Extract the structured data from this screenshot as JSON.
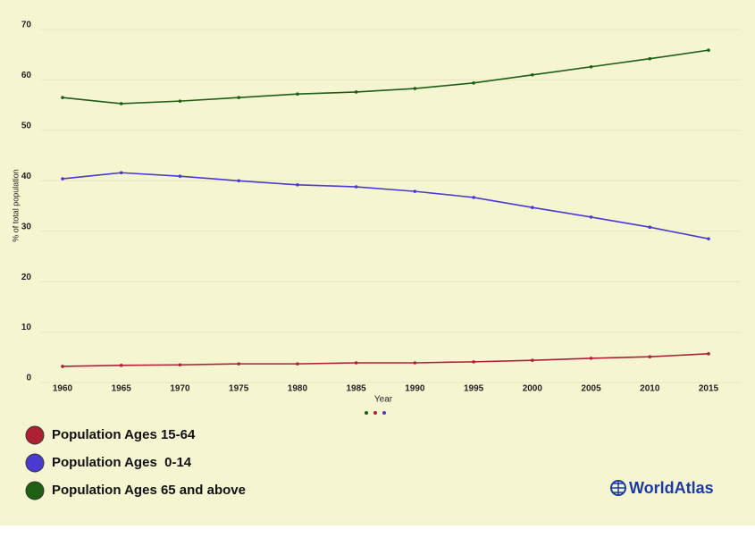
{
  "chart_data": {
    "type": "line",
    "x_label": "Year",
    "y_label": "% of total population",
    "categories": [
      "1960",
      "1965",
      "1970",
      "1975",
      "1980",
      "1985",
      "1990",
      "1995",
      "2000",
      "2005",
      "2010",
      "2015"
    ],
    "series": [
      {
        "name": "Population Ages 15-64",
        "color": "#b02035",
        "values": [
          3.2,
          3.4,
          3.5,
          3.7,
          3.7,
          3.9,
          3.9,
          4.1,
          4.4,
          4.8,
          5.1,
          5.7
        ]
      },
      {
        "name": "Population Ages  0-14",
        "color": "#4a3ad0",
        "values": [
          40.4,
          41.6,
          40.9,
          40.0,
          39.2,
          38.8,
          37.9,
          36.7,
          34.7,
          32.8,
          30.8,
          28.5
        ]
      },
      {
        "name": "Population Ages 65 and above",
        "color": "#1f5f14",
        "values": [
          56.5,
          55.3,
          55.8,
          56.5,
          57.2,
          57.6,
          58.3,
          59.4,
          61.0,
          62.6,
          64.2,
          65.9
        ]
      }
    ],
    "ylim": [
      0,
      70
    ],
    "yticks": [
      0,
      10,
      20,
      30,
      40,
      50,
      60,
      70
    ],
    "grid": true,
    "watermark": "WorldAtlas"
  }
}
